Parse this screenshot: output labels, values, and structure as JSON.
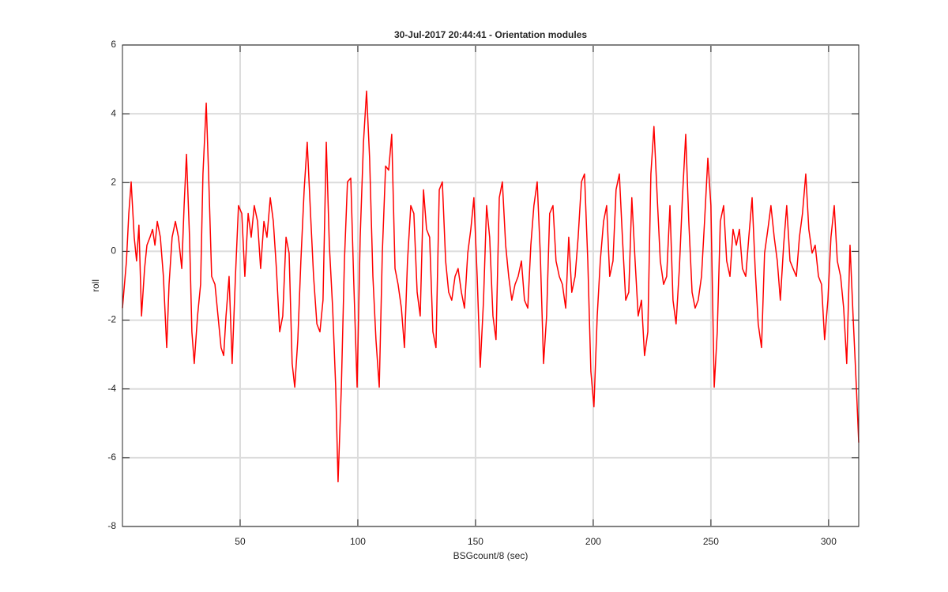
{
  "chart_data": {
    "type": "line",
    "title": "30-Jul-2017 20:44:41 - Orientation modules",
    "x_label": "BSGcount/8 (sec)",
    "y_label": "roll",
    "xlim": [
      0,
      312.8
    ],
    "ylim": [
      -8,
      6
    ],
    "xticks": [
      50,
      100,
      150,
      200,
      250,
      300
    ],
    "yticks": [
      -8,
      -6,
      -4,
      -2,
      0,
      2,
      4,
      6
    ],
    "grid": true,
    "x": [
      0,
      1.7,
      2.7,
      3.7,
      5.0,
      6.0,
      7.0,
      8.1,
      9.4,
      10.4,
      11.7,
      12.8,
      13.8,
      14.8,
      16.1,
      17.4,
      18.8,
      19.8,
      21.1,
      22.5,
      23.8,
      25.2,
      26.2,
      27.2,
      28.5,
      29.5,
      30.5,
      31.9,
      33.2,
      34.2,
      35.6,
      36.6,
      37.9,
      39.3,
      40.6,
      41.9,
      43.0,
      44.0,
      45.3,
      46.6,
      48.0,
      49.3,
      50.7,
      52.0,
      53.4,
      54.7,
      56.0,
      57.4,
      58.7,
      60.1,
      61.4,
      62.8,
      64.1,
      65.4,
      66.8,
      68.1,
      69.5,
      70.8,
      72.1,
      73.2,
      74.5,
      75.8,
      77.2,
      78.5,
      79.9,
      81.2,
      82.6,
      83.9,
      85.2,
      86.6,
      87.9,
      89.3,
      90.6,
      91.6,
      93.0,
      94.3,
      95.6,
      97.0,
      98.3,
      99.7,
      101.0,
      102.4,
      103.7,
      105.0,
      106.4,
      107.7,
      109.1,
      110.4,
      111.8,
      113.1,
      114.4,
      115.8,
      117.1,
      118.5,
      119.8,
      121.1,
      122.5,
      123.8,
      125.2,
      126.5,
      127.9,
      129.2,
      130.5,
      131.9,
      133.2,
      134.6,
      135.9,
      137.3,
      138.6,
      139.9,
      141.3,
      142.6,
      144.0,
      145.3,
      146.7,
      148.0,
      149.3,
      150.7,
      152.0,
      153.4,
      154.7,
      156.0,
      157.4,
      158.7,
      160.1,
      161.4,
      162.8,
      164.1,
      165.4,
      166.8,
      168.1,
      169.5,
      170.8,
      172.2,
      173.5,
      174.8,
      176.2,
      177.5,
      178.9,
      180.2,
      181.5,
      182.9,
      184.2,
      185.6,
      186.9,
      188.3,
      189.6,
      190.9,
      192.3,
      193.6,
      195.0,
      196.3,
      197.7,
      199.0,
      200.3,
      201.7,
      203.0,
      204.4,
      205.7,
      207.0,
      208.4,
      209.7,
      211.1,
      212.4,
      213.8,
      215.1,
      216.4,
      217.8,
      219.1,
      220.5,
      221.8,
      223.2,
      224.5,
      225.8,
      227.2,
      228.5,
      229.9,
      231.2,
      232.6,
      233.9,
      235.2,
      236.6,
      237.9,
      239.3,
      240.6,
      242.0,
      243.3,
      244.6,
      246.0,
      247.3,
      248.7,
      250.0,
      251.4,
      252.7,
      254.0,
      255.4,
      256.7,
      258.1,
      259.4,
      260.8,
      262.1,
      263.4,
      264.8,
      266.1,
      267.5,
      268.8,
      270.1,
      271.5,
      272.8,
      274.2,
      275.5,
      276.9,
      278.2,
      279.5,
      280.9,
      282.2,
      283.6,
      284.9,
      286.3,
      287.6,
      288.9,
      290.3,
      291.6,
      293.0,
      294.3,
      295.7,
      297.0,
      298.3,
      299.7,
      301.0,
      302.4,
      303.7,
      305.1,
      306.4,
      307.7,
      309.1,
      310.4,
      311.8,
      312.8
    ],
    "series": [
      {
        "color": "#ff0000",
        "values": [
          -1.65,
          -0.28,
          1.1,
          2.02,
          0.41,
          -0.28,
          0.76,
          -1.88,
          -0.5,
          0.18,
          0.41,
          0.64,
          0.18,
          0.87,
          0.41,
          -0.73,
          -2.8,
          -0.96,
          0.41,
          0.87,
          0.41,
          -0.5,
          1.33,
          2.82,
          0.41,
          -2.34,
          -3.26,
          -1.88,
          -0.96,
          2.25,
          4.31,
          2.25,
          -0.73,
          -0.96,
          -1.88,
          -2.8,
          -3.03,
          -1.88,
          -0.73,
          -3.26,
          -0.73,
          1.33,
          1.1,
          -0.73,
          1.1,
          0.41,
          1.33,
          0.87,
          -0.5,
          0.87,
          0.41,
          1.56,
          0.87,
          -0.5,
          -2.34,
          -1.88,
          0.41,
          -0.05,
          -3.26,
          -3.95,
          -2.57,
          -0.28,
          1.79,
          3.17,
          1.1,
          -0.73,
          -2.11,
          -2.34,
          -1.42,
          3.17,
          0.18,
          -1.65,
          -3.95,
          -6.7,
          -3.95,
          -0.28,
          2.02,
          2.13,
          -0.96,
          -3.95,
          0.41,
          3.17,
          4.66,
          2.71,
          -0.73,
          -2.57,
          -3.95,
          -0.05,
          2.48,
          2.36,
          3.4,
          -0.5,
          -0.96,
          -1.65,
          -2.8,
          -0.28,
          1.33,
          1.1,
          -1.19,
          -1.88,
          1.79,
          0.64,
          0.41,
          -2.34,
          -2.8,
          1.79,
          2.02,
          -0.28,
          -1.19,
          -1.42,
          -0.73,
          -0.5,
          -1.19,
          -1.65,
          -0.05,
          0.64,
          1.56,
          -0.73,
          -3.37,
          -1.42,
          1.33,
          0.41,
          -1.88,
          -2.57,
          1.56,
          2.02,
          0.18,
          -0.73,
          -1.42,
          -0.96,
          -0.73,
          -0.28,
          -1.42,
          -1.65,
          0.18,
          1.33,
          2.02,
          -0.05,
          -3.26,
          -1.88,
          1.1,
          1.33,
          -0.28,
          -0.73,
          -0.96,
          -1.65,
          0.41,
          -1.19,
          -0.73,
          0.41,
          2.02,
          2.25,
          -0.28,
          -3.49,
          -4.52,
          -1.88,
          -0.28,
          0.87,
          1.33,
          -0.73,
          -0.28,
          1.79,
          2.25,
          0.41,
          -1.42,
          -1.19,
          1.56,
          -0.28,
          -1.88,
          -1.42,
          -3.03,
          -2.34,
          2.25,
          3.63,
          1.56,
          -0.28,
          -0.96,
          -0.73,
          1.33,
          -1.42,
          -2.11,
          -0.5,
          1.56,
          3.4,
          0.87,
          -1.19,
          -1.65,
          -1.42,
          -0.73,
          0.87,
          2.71,
          1.33,
          -3.95,
          -2.34,
          0.87,
          1.33,
          -0.28,
          -0.73,
          0.64,
          0.18,
          0.64,
          -0.5,
          -0.73,
          0.41,
          1.56,
          -0.5,
          -2.11,
          -2.8,
          -0.05,
          0.64,
          1.33,
          0.41,
          -0.28,
          -1.42,
          0.18,
          1.33,
          -0.28,
          -0.5,
          -0.73,
          0.41,
          1.1,
          2.25,
          0.64,
          -0.05,
          0.18,
          -0.73,
          -0.96,
          -2.57,
          -1.42,
          0.41,
          1.33,
          -0.28,
          -0.73,
          -1.65,
          -3.26,
          0.18,
          -1.88,
          -3.95,
          -5.56
        ]
      }
    ]
  }
}
